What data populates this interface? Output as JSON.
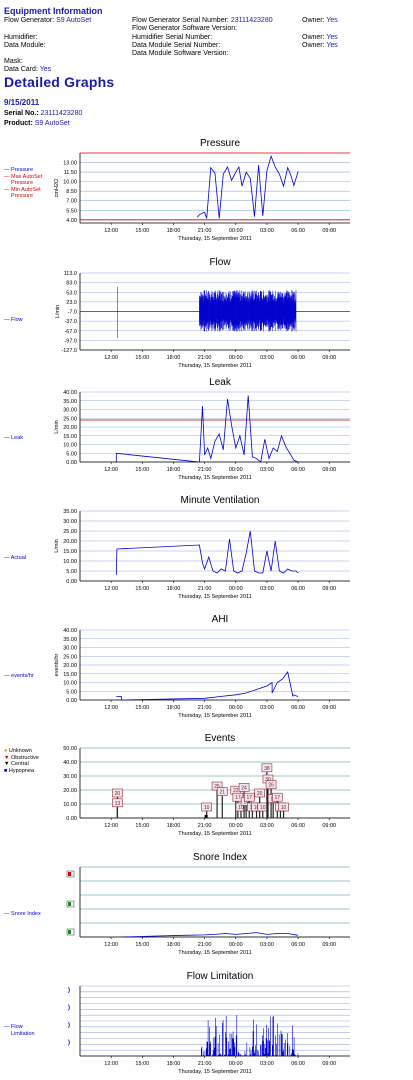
{
  "equipment": {
    "title": "Equipment Information",
    "flow_generator_label": "Flow Generator:",
    "flow_generator_value": "S9 AutoSet",
    "fg_serial_label": "Flow Generator Serial Number:",
    "fg_serial_value": "23111423280",
    "fg_software_label": "Flow Generator Software Version:",
    "owner_label": "Owner:",
    "owner_value": "Yes",
    "humidifier_label": "Humidifier:",
    "humidifier_serial_label": "Humidifier Serial Number:",
    "data_module_label": "Data Module:",
    "dm_serial_label": "Data Module Serial Number:",
    "dm_software_label": "Data Module Software Version:",
    "mask_label": "Mask:",
    "data_card_label": "Data Card:",
    "data_card_value": "Yes"
  },
  "report": {
    "title": "Detailed Graphs",
    "date": "9/15/2011",
    "serial_label": "Serial No.:",
    "serial_value": "23111423280",
    "product_label": "Product:",
    "product_value": "S9 AutoSet"
  },
  "colors": {
    "series": "#0000cc",
    "limit": "#cc0000",
    "grid_blue": "#99aedd",
    "grid_teal": "#3a8f8f",
    "grid_gray": "#c0c0c0"
  },
  "chart_data": [
    {
      "type": "line",
      "title": "Pressure",
      "ylabel": "cmH2O",
      "xlabel": "Thursday, 15 September 2011",
      "x_ticks": [
        "12:00",
        "15:00",
        "18:00",
        "21:00",
        "00:00",
        "03:00",
        "06:00",
        "09:00"
      ],
      "y_ticks": [
        "13.00",
        "11.50",
        "10.00",
        "8.50",
        "7.00",
        "5.50",
        "4.00"
      ],
      "ylim": [
        3.5,
        14.5
      ],
      "legend": [
        "Pressure",
        "Max AutoSet Pressure",
        "Min AutoSet Pressure"
      ],
      "reference_lines": [
        14.5,
        4.0
      ],
      "series": [
        {
          "name": "Pressure",
          "x_hours": [
            20.3,
            20.5,
            21.0,
            21.2,
            21.6,
            22.0,
            22.4,
            22.8,
            23.2,
            23.6,
            24.0,
            24.3,
            24.6,
            25.0,
            25.4,
            25.8,
            26.2,
            26.6,
            27.0,
            27.4,
            27.8,
            28.2,
            28.6,
            29.0,
            29.3,
            29.6,
            30.0
          ],
          "y": [
            4.4,
            4.8,
            5.2,
            4.2,
            12.2,
            11.3,
            4.2,
            11.2,
            12.3,
            10.2,
            11.5,
            12.3,
            9.3,
            11.5,
            10.5,
            4.5,
            12.6,
            4.6,
            11.7,
            14.0,
            12.3,
            11.2,
            9.3,
            12.2,
            11.0,
            9.4,
            11.6
          ]
        }
      ]
    },
    {
      "type": "line",
      "title": "Flow",
      "ylabel": "L/min",
      "xlabel": "Thursday, 15 September 2011",
      "x_ticks": [
        "12:00",
        "15:00",
        "18:00",
        "21:00",
        "00:00",
        "03:00",
        "06:00",
        "09:00"
      ],
      "y_ticks": [
        "113.0",
        "83.0",
        "53.0",
        "23.0",
        "-7.0",
        "-37.0",
        "-67.0",
        "-97.0",
        "-127.0"
      ],
      "ylim": [
        -127,
        113
      ],
      "legend": [
        "Flow"
      ],
      "reference_lines": [
        -7
      ],
      "series": [
        {
          "name": "Flow",
          "note": "dense oscillation between about -70 and +50 L/min from 20:30 to 05:30, with a short segment near 12:30"
        }
      ]
    },
    {
      "type": "line",
      "title": "Leak",
      "ylabel": "L/min",
      "xlabel": "Thursday, 15 September 2011",
      "x_ticks": [
        "12:00",
        "15:00",
        "18:00",
        "21:00",
        "00:00",
        "03:00",
        "06:00",
        "09:00"
      ],
      "y_ticks": [
        "40.00",
        "35.00",
        "30.00",
        "25.00",
        "20.00",
        "15.00",
        "10.00",
        "5.00",
        "0.00"
      ],
      "ylim": [
        0,
        40
      ],
      "legend": [
        "Leak"
      ],
      "reference_lines": [
        24
      ],
      "series": [
        {
          "name": "Leak",
          "x_hours": [
            12.5,
            12.5,
            20.5,
            20.8,
            21.0,
            21.3,
            21.6,
            22.0,
            22.4,
            22.8,
            23.2,
            23.6,
            24.0,
            24.4,
            24.8,
            25.2,
            25.6,
            26.0,
            26.4,
            26.8,
            27.2,
            27.6,
            28.0,
            28.4,
            28.8,
            29.2,
            29.6,
            30.0
          ],
          "y": [
            0,
            5,
            0,
            32,
            4,
            8,
            2,
            12,
            16,
            7,
            36,
            21,
            8,
            15,
            4,
            38,
            3,
            2,
            0,
            13,
            2,
            8,
            6,
            15,
            9,
            5,
            1,
            0
          ]
        }
      ]
    },
    {
      "type": "line",
      "title": "Minute Ventilation",
      "ylabel": "L/min",
      "xlabel": "Thursday, 15 September 2011",
      "x_ticks": [
        "12:00",
        "15:00",
        "18:00",
        "21:00",
        "00:00",
        "03:00",
        "06:00",
        "09:00"
      ],
      "y_ticks": [
        "35.00",
        "30.00",
        "25.00",
        "20.00",
        "15.00",
        "10.00",
        "5.00",
        "0.00"
      ],
      "ylim": [
        0,
        35
      ],
      "legend": [
        "Actual"
      ],
      "series": [
        {
          "name": "Actual",
          "x_hours": [
            12.5,
            12.55,
            20.5,
            20.8,
            21.0,
            21.4,
            21.8,
            22.2,
            22.6,
            23.0,
            23.4,
            23.8,
            24.2,
            24.6,
            25.0,
            25.4,
            25.8,
            26.2,
            26.6,
            27.0,
            27.4,
            27.8,
            28.2,
            28.6,
            29.0,
            29.4,
            29.8,
            30.0
          ],
          "y": [
            3,
            16,
            18,
            9,
            6,
            12,
            5,
            4,
            6,
            5,
            21,
            5,
            4,
            5,
            14,
            25,
            5,
            4,
            4,
            15,
            5,
            20,
            5,
            4,
            6,
            5,
            5,
            4
          ]
        }
      ]
    },
    {
      "type": "line",
      "title": "AHI",
      "ylabel": "events/hr",
      "xlabel": "Thursday, 15 September 2011",
      "x_ticks": [
        "12:00",
        "15:00",
        "18:00",
        "21:00",
        "00:00",
        "03:00",
        "06:00",
        "09:00"
      ],
      "y_ticks": [
        "40.00",
        "35.00",
        "30.00",
        "25.00",
        "20.00",
        "15.00",
        "10.00",
        "5.00",
        "0.00"
      ],
      "ylim": [
        0,
        40
      ],
      "legend": [
        "events/hr"
      ],
      "series": [
        {
          "name": "events/hr",
          "x_hours": [
            12.5,
            13.0,
            13.0,
            21.0,
            22.5,
            24.0,
            25.0,
            26.0,
            27.0,
            27.5,
            27.5,
            28.0,
            28.5,
            29.0,
            29.5,
            29.5,
            30.0
          ],
          "y": [
            2,
            2,
            0,
            1,
            2,
            3,
            4,
            6,
            8,
            10,
            4,
            10,
            12,
            16,
            2,
            3,
            2
          ]
        }
      ]
    },
    {
      "type": "bar",
      "title": "Events",
      "xlabel": "Thursday, 15 September 2011",
      "x_ticks": [
        "12:00",
        "15:00",
        "18:00",
        "21:00",
        "00:00",
        "03:00",
        "06:00",
        "09:00"
      ],
      "y_ticks": [
        "50.00",
        "40.00",
        "30.00",
        "20.00",
        "10.00",
        "0.00"
      ],
      "ylim": [
        0,
        50
      ],
      "legend": [
        "Unknown",
        "Obstructive",
        "Central",
        "Hypopnea"
      ],
      "events": [
        {
          "x_hour": 12.6,
          "duration": 20
        },
        {
          "x_hour": 12.6,
          "duration": 13
        },
        {
          "x_hour": 21.2,
          "duration": 10
        },
        {
          "x_hour": 22.2,
          "duration": 25
        },
        {
          "x_hour": 22.7,
          "duration": 21
        },
        {
          "x_hour": 24.0,
          "duration": 22
        },
        {
          "x_hour": 24.2,
          "duration": 17
        },
        {
          "x_hour": 24.5,
          "duration": 10
        },
        {
          "x_hour": 24.8,
          "duration": 24
        },
        {
          "x_hour": 25.0,
          "duration": 14
        },
        {
          "x_hour": 25.3,
          "duration": 17
        },
        {
          "x_hour": 25.6,
          "duration": 10
        },
        {
          "x_hour": 26.0,
          "duration": 10
        },
        {
          "x_hour": 26.3,
          "duration": 20
        },
        {
          "x_hour": 26.6,
          "duration": 10
        },
        {
          "x_hour": 27.0,
          "duration": 38
        },
        {
          "x_hour": 27.1,
          "duration": 30
        },
        {
          "x_hour": 27.4,
          "duration": 26
        },
        {
          "x_hour": 27.6,
          "duration": 16
        },
        {
          "x_hour": 28.0,
          "duration": 17
        },
        {
          "x_hour": 28.3,
          "duration": 10
        },
        {
          "x_hour": 28.6,
          "duration": 10
        }
      ]
    },
    {
      "type": "line",
      "title": "Snore Index",
      "xlabel": "Thursday, 15 September 2011",
      "x_ticks": [
        "12:00",
        "15:00",
        "18:00",
        "21:00",
        "00:00",
        "03:00",
        "06:00",
        "09:00"
      ],
      "ylim": [
        0,
        4
      ],
      "legend": [
        "Snore Index"
      ],
      "series": [
        {
          "name": "Snore Index",
          "x_hours": [
            13.0,
            16.0,
            19.0,
            21.0,
            22.0,
            23.0,
            24.0,
            25.0,
            26.0,
            27.0,
            28.0,
            29.0,
            30.0
          ],
          "y": [
            0.0,
            0.05,
            0.1,
            0.12,
            0.15,
            0.2,
            0.15,
            0.2,
            0.25,
            0.15,
            0.2,
            0.2,
            0.1
          ]
        }
      ]
    },
    {
      "type": "line",
      "title": "Flow Limitation",
      "xlabel": "Thursday, 15 September 2011",
      "x_ticks": [
        "12:00",
        "15:00",
        "18:00",
        "21:00",
        "00:00",
        "03:00",
        "06:00",
        "09:00"
      ],
      "ylim": [
        0,
        1
      ],
      "legend": [
        "Flow Limitation"
      ],
      "series": [
        {
          "name": "Flow Limitation",
          "note": "spiky values between 0 and about 0.6 from 20:30 to 06:00"
        }
      ]
    }
  ]
}
